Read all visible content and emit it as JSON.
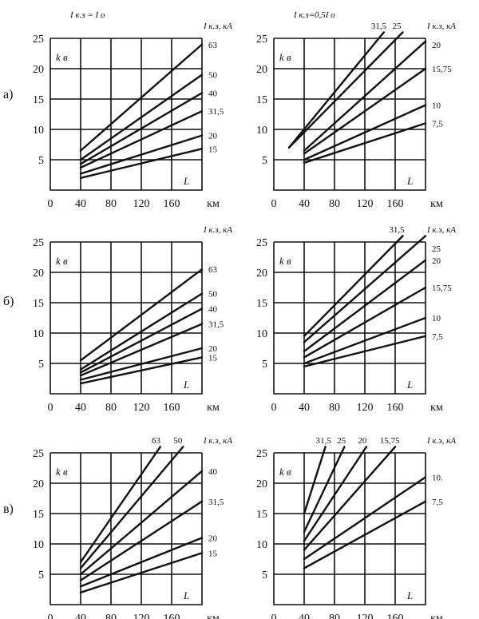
{
  "row_labels": [
    "а)",
    "б)",
    "в)"
  ],
  "chart_data": [
    {
      "type": "line",
      "row": 0,
      "col": 0,
      "header": "I к.з = I о",
      "ylabel": "k в",
      "xlabel": "L",
      "x_unit": "км",
      "unit_label": "I к.з, кА",
      "xlim": [
        0,
        200
      ],
      "ylim": [
        0,
        25
      ],
      "xticks": [
        0,
        40,
        80,
        120,
        160
      ],
      "yticks": [
        5,
        10,
        15,
        20,
        25
      ],
      "xtick_labels": [
        "0",
        "40",
        "80",
        "120",
        "160"
      ],
      "ytick_labels": [
        "5",
        "10",
        "15",
        "20",
        "25"
      ],
      "series": [
        {
          "name": "63",
          "x": [
            40,
            200
          ],
          "y": [
            6.5,
            24
          ]
        },
        {
          "name": "50",
          "x": [
            40,
            200
          ],
          "y": [
            5,
            19
          ]
        },
        {
          "name": "40",
          "x": [
            40,
            200
          ],
          "y": [
            4.3,
            16
          ]
        },
        {
          "name": "31,5",
          "x": [
            40,
            200
          ],
          "y": [
            3.7,
            13
          ]
        },
        {
          "name": "20",
          "x": [
            40,
            200
          ],
          "y": [
            2.7,
            9
          ]
        },
        {
          "name": "15",
          "x": [
            40,
            200
          ],
          "y": [
            2,
            6.8
          ]
        }
      ]
    },
    {
      "type": "line",
      "row": 0,
      "col": 1,
      "header": "I к.з=0,5I о",
      "ylabel": "k в",
      "xlabel": "L",
      "x_unit": "км",
      "unit_label": "I к.з, кА",
      "xlim": [
        0,
        200
      ],
      "ylim": [
        0,
        25
      ],
      "xticks": [
        0,
        40,
        80,
        120,
        160
      ],
      "yticks": [
        5,
        10,
        15,
        20,
        25
      ],
      "xtick_labels": [
        "0",
        "40",
        "80",
        "120",
        "160"
      ],
      "ytick_labels": [
        "5",
        "10",
        "15",
        "20",
        "25"
      ],
      "series": [
        {
          "name": "31,5",
          "x": [
            20,
            145
          ],
          "y": [
            7,
            26
          ]
        },
        {
          "name": "25",
          "x": [
            20,
            170
          ],
          "y": [
            7,
            26
          ]
        },
        {
          "name": "20",
          "x": [
            40,
            200
          ],
          "y": [
            6.5,
            24.5
          ]
        },
        {
          "name": "15,75",
          "x": [
            40,
            200
          ],
          "y": [
            6,
            20
          ]
        },
        {
          "name": "10",
          "x": [
            40,
            200
          ],
          "y": [
            5,
            14
          ]
        },
        {
          "name": "7,5",
          "x": [
            40,
            200
          ],
          "y": [
            4.5,
            11
          ]
        }
      ],
      "top_label_names": [
        "31,5",
        "25"
      ]
    },
    {
      "type": "line",
      "row": 1,
      "col": 0,
      "header": "",
      "ylabel": "k в",
      "xlabel": "L",
      "x_unit": "км",
      "unit_label": "I к.з, кА",
      "xlim": [
        0,
        200
      ],
      "ylim": [
        0,
        25
      ],
      "xticks": [
        0,
        40,
        80,
        120,
        160
      ],
      "yticks": [
        5,
        10,
        15,
        20,
        25
      ],
      "xtick_labels": [
        "0",
        "40",
        "80",
        "120",
        "160"
      ],
      "ytick_labels": [
        "5",
        "10",
        "15",
        "20",
        "25"
      ],
      "series": [
        {
          "name": "63",
          "x": [
            40,
            200
          ],
          "y": [
            5.5,
            20.5
          ]
        },
        {
          "name": "50",
          "x": [
            40,
            200
          ],
          "y": [
            4,
            16.5
          ]
        },
        {
          "name": "40",
          "x": [
            40,
            200
          ],
          "y": [
            3.5,
            14
          ]
        },
        {
          "name": "31,5",
          "x": [
            40,
            200
          ],
          "y": [
            3,
            11.5
          ]
        },
        {
          "name": "20",
          "x": [
            40,
            200
          ],
          "y": [
            2.3,
            7.5
          ]
        },
        {
          "name": "15",
          "x": [
            40,
            200
          ],
          "y": [
            1.7,
            6
          ]
        }
      ]
    },
    {
      "type": "line",
      "row": 1,
      "col": 1,
      "header": "",
      "ylabel": "k в",
      "xlabel": "L",
      "x_unit": "км",
      "unit_label": "I к.з, кА",
      "xlim": [
        0,
        200
      ],
      "ylim": [
        0,
        25
      ],
      "xticks": [
        0,
        40,
        80,
        120,
        160
      ],
      "yticks": [
        5,
        10,
        15,
        20,
        25
      ],
      "xtick_labels": [
        "0",
        "40",
        "80",
        "120",
        "160"
      ],
      "ytick_labels": [
        "5",
        "10",
        "15",
        "20",
        "25"
      ],
      "series": [
        {
          "name": "31,5",
          "x": [
            40,
            170
          ],
          "y": [
            9.5,
            26
          ]
        },
        {
          "name": "25",
          "x": [
            40,
            200
          ],
          "y": [
            8.5,
            26
          ]
        },
        {
          "name": "20",
          "x": [
            40,
            200
          ],
          "y": [
            7,
            22
          ]
        },
        {
          "name": "15,75",
          "x": [
            40,
            200
          ],
          "y": [
            6,
            17.5
          ]
        },
        {
          "name": "10",
          "x": [
            40,
            200
          ],
          "y": [
            5,
            12.5
          ]
        },
        {
          "name": "7,5",
          "x": [
            40,
            200
          ],
          "y": [
            4.5,
            9.5
          ]
        }
      ],
      "top_label_names": [
        "31,5"
      ]
    },
    {
      "type": "line",
      "row": 2,
      "col": 0,
      "header": "",
      "ylabel": "k в",
      "xlabel": "L",
      "x_unit": "км",
      "unit_label": "I к.з, кА",
      "xlim": [
        0,
        200
      ],
      "ylim": [
        0,
        25
      ],
      "xticks": [
        0,
        40,
        80,
        120,
        160
      ],
      "yticks": [
        5,
        10,
        15,
        20,
        25
      ],
      "xtick_labels": [
        "0",
        "40",
        "80",
        "120",
        "160"
      ],
      "ytick_labels": [
        "5",
        "10",
        "15",
        "20",
        "25"
      ],
      "series": [
        {
          "name": "63",
          "x": [
            40,
            145
          ],
          "y": [
            7,
            26
          ]
        },
        {
          "name": "50",
          "x": [
            40,
            175
          ],
          "y": [
            6,
            26
          ]
        },
        {
          "name": "40",
          "x": [
            40,
            200
          ],
          "y": [
            5,
            22
          ]
        },
        {
          "name": "31,5",
          "x": [
            40,
            200
          ],
          "y": [
            4,
            17
          ]
        },
        {
          "name": "20",
          "x": [
            40,
            200
          ],
          "y": [
            3,
            11
          ]
        },
        {
          "name": "15",
          "x": [
            40,
            200
          ],
          "y": [
            2,
            8.5
          ]
        }
      ],
      "top_label_names": [
        "63",
        "50"
      ]
    },
    {
      "type": "line",
      "row": 2,
      "col": 1,
      "header": "",
      "ylabel": "k в",
      "xlabel": "L",
      "x_unit": "км",
      "unit_label": "I к.з, кА",
      "xlim": [
        0,
        200
      ],
      "ylim": [
        0,
        25
      ],
      "xticks": [
        0,
        40,
        80,
        120,
        160
      ],
      "yticks": [
        5,
        10,
        15,
        20,
        25
      ],
      "xtick_labels": [
        "0",
        "40",
        "80",
        "120",
        "160"
      ],
      "ytick_labels": [
        "5",
        "10",
        "15",
        "20",
        "25"
      ],
      "series": [
        {
          "name": "31,5",
          "x": [
            40,
            68
          ],
          "y": [
            15,
            26
          ]
        },
        {
          "name": "25",
          "x": [
            40,
            93
          ],
          "y": [
            12,
            26
          ]
        },
        {
          "name": "20",
          "x": [
            40,
            122
          ],
          "y": [
            10.5,
            26
          ]
        },
        {
          "name": "15,75",
          "x": [
            40,
            160
          ],
          "y": [
            9,
            26
          ]
        },
        {
          "name": "10.",
          "x": [
            40,
            200
          ],
          "y": [
            7.5,
            21
          ]
        },
        {
          "name": "7,5",
          "x": [
            40,
            200
          ],
          "y": [
            6,
            17
          ]
        }
      ],
      "top_label_names": [
        "31,5",
        "25",
        "20",
        "15,75"
      ]
    }
  ]
}
